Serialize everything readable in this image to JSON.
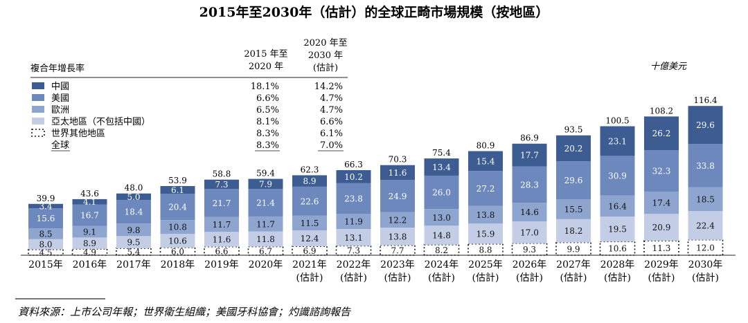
{
  "title": "2015年至2030年（估計）的全球正畸市場規模（按地區）",
  "unit": "十億美元",
  "source": "資料來源：上市公司年報；世界衛生組織；美國牙科協會；灼識諮詢報告",
  "cagr_table": {
    "row_header": "複合年增長率",
    "col1_header": [
      "2015 年至",
      "2020 年"
    ],
    "col2_header": [
      "2020 年至",
      "2030 年",
      "(估計)"
    ],
    "rows": [
      {
        "label": "中國",
        "v1": "18.1%",
        "v2": "14.2%"
      },
      {
        "label": "美國",
        "v1": "6.6%",
        "v2": "4.7%"
      },
      {
        "label": "歐洲",
        "v1": "6.5%",
        "v2": "4.7%"
      },
      {
        "label": "亞太地區（不包括中國）",
        "v1": "8.1%",
        "v2": "6.6%"
      },
      {
        "label": "世界其他地區",
        "v1": "8.3%",
        "v2": "6.1%"
      },
      {
        "label": "全球",
        "v1": "8.3%",
        "v2": "7.0%"
      }
    ]
  },
  "colors": {
    "china": "#3d5d92",
    "usa": "#6c88bd",
    "europe": "#8ea5cf",
    "apac": "#c3cee6",
    "row": "#ffffff"
  },
  "chart_data": {
    "type": "bar",
    "stacked": true,
    "categories": [
      [
        "2015年"
      ],
      [
        "2016年"
      ],
      [
        "2017年"
      ],
      [
        "2018年"
      ],
      [
        "2019年"
      ],
      [
        "2020年"
      ],
      [
        "2021年",
        "(估計)"
      ],
      [
        "2022年",
        "(估計)"
      ],
      [
        "2023年",
        "(估計)"
      ],
      [
        "2024年",
        "(估計)"
      ],
      [
        "2025年",
        "(估計)"
      ],
      [
        "2026年",
        "(估計)"
      ],
      [
        "2027年",
        "(估計)"
      ],
      [
        "2028年",
        "(估計)"
      ],
      [
        "2029年",
        "(估計)"
      ],
      [
        "2030年",
        "(估計)"
      ]
    ],
    "series": [
      {
        "name": "世界其他地區",
        "values": [
          4.5,
          4.9,
          5.4,
          6.0,
          6.6,
          6.7,
          6.9,
          7.3,
          7.7,
          8.2,
          8.8,
          9.3,
          9.9,
          10.6,
          11.3,
          12.0
        ]
      },
      {
        "name": "亞太地區（不包括中國）",
        "values": [
          8.0,
          8.9,
          9.5,
          10.6,
          11.6,
          11.8,
          12.4,
          13.1,
          13.8,
          14.8,
          15.9,
          17.0,
          18.2,
          19.5,
          20.9,
          22.4
        ]
      },
      {
        "name": "歐洲",
        "values": [
          8.5,
          9.1,
          9.8,
          10.8,
          11.7,
          11.7,
          11.5,
          11.9,
          12.2,
          13.0,
          13.8,
          14.6,
          15.5,
          16.4,
          17.4,
          18.5
        ]
      },
      {
        "name": "美國",
        "values": [
          15.6,
          16.7,
          18.4,
          20.4,
          21.7,
          21.4,
          22.6,
          23.8,
          24.9,
          26.0,
          27.2,
          28.3,
          29.6,
          30.9,
          32.3,
          33.8
        ]
      },
      {
        "name": "中國",
        "values": [
          3.4,
          4.1,
          5.0,
          6.1,
          7.3,
          7.9,
          8.9,
          10.2,
          11.6,
          13.4,
          15.4,
          17.7,
          20.2,
          23.1,
          26.2,
          29.6
        ]
      }
    ],
    "totals": [
      39.9,
      43.6,
      48.0,
      53.9,
      58.8,
      59.4,
      62.3,
      66.3,
      70.3,
      75.4,
      80.9,
      86.9,
      93.5,
      100.5,
      108.2,
      116.4
    ],
    "ylabel": "十億美元",
    "ylim": [
      0,
      116.4
    ]
  }
}
